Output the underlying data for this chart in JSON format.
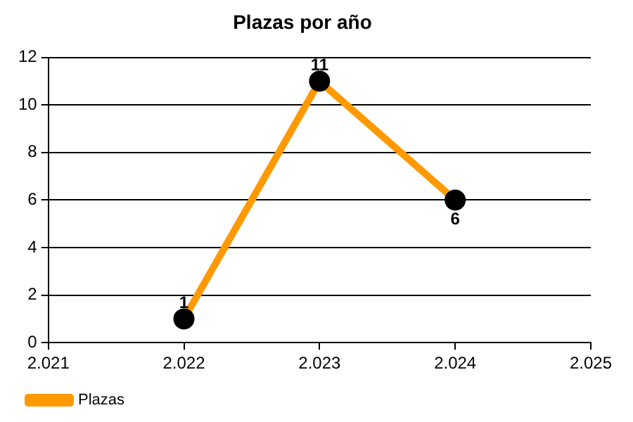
{
  "chart_data": {
    "type": "line",
    "title": "Plazas por año",
    "x": [
      2022,
      2023,
      2024
    ],
    "series": [
      {
        "name": "Plazas",
        "color": "#ff9900",
        "values": [
          1,
          11,
          6
        ]
      }
    ],
    "xlim": [
      2021,
      2025
    ],
    "xticks": [
      {
        "value": 2021,
        "label": "2.021"
      },
      {
        "value": 2022,
        "label": "2.022"
      },
      {
        "value": 2023,
        "label": "2.023"
      },
      {
        "value": 2024,
        "label": "2.024"
      },
      {
        "value": 2025,
        "label": "2.025"
      }
    ],
    "ylim": [
      0,
      12
    ],
    "yticks": [
      0,
      2,
      4,
      6,
      8,
      10,
      12
    ],
    "grid": "y",
    "legend": "bottom left",
    "marker": "circle",
    "line_style": "solid",
    "data_labels": true
  }
}
